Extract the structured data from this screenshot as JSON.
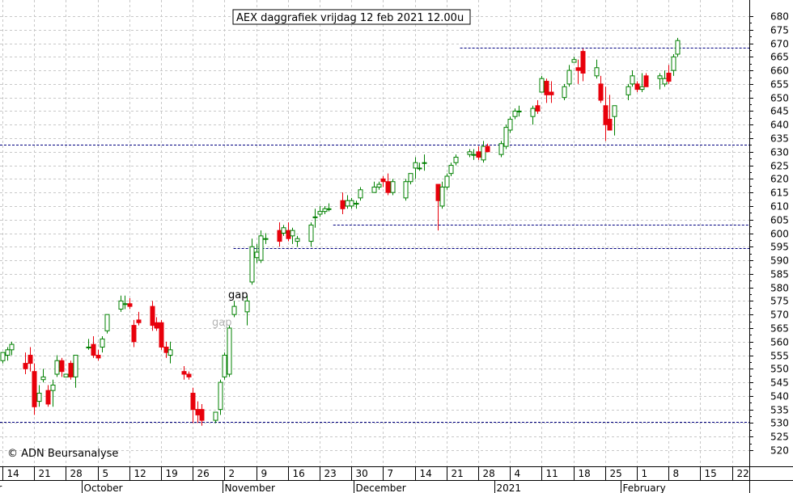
{
  "chart_data": {
    "type": "candlestick",
    "title": "AEX daggrafiek vrijdag 12 feb 2021 12.00u",
    "copyright": "© ADN Beursanalyse",
    "ylim": [
      515,
      685
    ],
    "y_ticks": [
      520,
      525,
      530,
      535,
      540,
      545,
      550,
      555,
      560,
      565,
      570,
      575,
      580,
      585,
      590,
      595,
      600,
      605,
      610,
      615,
      620,
      625,
      630,
      635,
      640,
      645,
      650,
      655,
      660,
      665,
      670,
      675,
      680
    ],
    "x_day_ticks": [
      "14",
      "21",
      "28",
      "5",
      "12",
      "19",
      "26",
      "2",
      "9",
      "16",
      "23",
      "30",
      "7",
      "14",
      "21",
      "28",
      "4",
      "11",
      "18",
      "25",
      "1",
      "8",
      "15",
      "22"
    ],
    "x_month_labels": [
      "er",
      "October",
      "November",
      "December",
      "2021",
      "February"
    ],
    "colors": {
      "up": "#008000",
      "down": "#e8000b",
      "dotted_line": "#000080",
      "grid": "#c8c8c8"
    },
    "annotations": [
      {
        "text": "gap",
        "color": "#000000"
      },
      {
        "text": "gap",
        "color": "#b4b4b4"
      }
    ],
    "support_resistance_lines": [
      {
        "level": 530.5,
        "start_day": 0
      },
      {
        "level": 632.5,
        "start_day": 0
      },
      {
        "level": 594.5,
        "start_day": 51
      },
      {
        "level": 603.0,
        "start_day": 73
      },
      {
        "level": 668.5,
        "start_day": 101
      }
    ],
    "candles": [
      {
        "day": 0,
        "o": 553,
        "h": 556,
        "l": 552,
        "c": 556
      },
      {
        "day": 1,
        "o": 555,
        "h": 558,
        "l": 553,
        "c": 557
      },
      {
        "day": 2,
        "o": 557,
        "h": 560,
        "l": 555,
        "c": 559
      },
      {
        "day": 5,
        "o": 552,
        "h": 556,
        "l": 548,
        "c": 550
      },
      {
        "day": 6,
        "o": 555,
        "h": 558,
        "l": 549,
        "c": 552
      },
      {
        "day": 7,
        "o": 549,
        "h": 552,
        "l": 533,
        "c": 536
      },
      {
        "day": 8,
        "o": 538,
        "h": 544,
        "l": 536,
        "c": 541
      },
      {
        "day": 9,
        "o": 546,
        "h": 550,
        "l": 545,
        "c": 547
      },
      {
        "day": 10,
        "o": 542,
        "h": 544,
        "l": 536,
        "c": 537
      },
      {
        "day": 11,
        "o": 542,
        "h": 546,
        "l": 536,
        "c": 544
      },
      {
        "day": 12,
        "o": 548,
        "h": 555,
        "l": 547,
        "c": 553
      },
      {
        "day": 13,
        "o": 553,
        "h": 554,
        "l": 547,
        "c": 549
      },
      {
        "day": 14,
        "o": 547,
        "h": 548,
        "l": 547,
        "c": 548
      },
      {
        "day": 15,
        "o": 552,
        "h": 553,
        "l": 546,
        "c": 547
      },
      {
        "day": 16,
        "o": 547,
        "h": 555,
        "l": 543,
        "c": 555
      },
      {
        "day": 19,
        "o": 558,
        "h": 561,
        "l": 557,
        "c": 558
      },
      {
        "day": 20,
        "o": 559,
        "h": 562,
        "l": 554,
        "c": 555
      },
      {
        "day": 21,
        "o": 555,
        "h": 557,
        "l": 553,
        "c": 554
      },
      {
        "day": 22,
        "o": 558,
        "h": 562,
        "l": 556,
        "c": 561
      },
      {
        "day": 23,
        "o": 564,
        "h": 570,
        "l": 563,
        "c": 570
      },
      {
        "day": 26,
        "o": 572,
        "h": 577,
        "l": 571,
        "c": 575
      },
      {
        "day": 27,
        "o": 574,
        "h": 577,
        "l": 572,
        "c": 574
      },
      {
        "day": 28,
        "o": 574,
        "h": 576,
        "l": 572,
        "c": 573
      },
      {
        "day": 29,
        "o": 566,
        "h": 568,
        "l": 558,
        "c": 560
      },
      {
        "day": 30,
        "o": 568,
        "h": 571,
        "l": 566,
        "c": 567
      },
      {
        "day": 33,
        "o": 573,
        "h": 575,
        "l": 564,
        "c": 566
      },
      {
        "day": 34,
        "o": 567,
        "h": 569,
        "l": 564,
        "c": 565
      },
      {
        "day": 35,
        "o": 567,
        "h": 568,
        "l": 557,
        "c": 558
      },
      {
        "day": 36,
        "o": 558,
        "h": 560,
        "l": 554,
        "c": 556
      },
      {
        "day": 37,
        "o": 555,
        "h": 560,
        "l": 552,
        "c": 557
      },
      {
        "day": 40,
        "o": 549,
        "h": 551,
        "l": 546,
        "c": 548
      },
      {
        "day": 41,
        "o": 548,
        "h": 549,
        "l": 546,
        "c": 547
      },
      {
        "day": 42,
        "o": 541,
        "h": 543,
        "l": 530,
        "c": 535
      },
      {
        "day": 43,
        "o": 535,
        "h": 538,
        "l": 530,
        "c": 533
      },
      {
        "day": 44,
        "o": 535,
        "h": 537,
        "l": 529,
        "c": 531
      },
      {
        "day": 47,
        "o": 531,
        "h": 534,
        "l": 530,
        "c": 534
      },
      {
        "day": 48,
        "o": 535,
        "h": 546,
        "l": 533,
        "c": 545
      },
      {
        "day": 49,
        "o": 547,
        "h": 556,
        "l": 546,
        "c": 555
      },
      {
        "day": 50,
        "o": 548,
        "h": 566,
        "l": 547,
        "c": 565
      },
      {
        "day": 51,
        "o": 570,
        "h": 575,
        "l": 569,
        "c": 573
      },
      {
        "day": 54,
        "o": 571,
        "h": 577,
        "l": 566,
        "c": 575
      },
      {
        "day": 55,
        "o": 582,
        "h": 598,
        "l": 581,
        "c": 595
      },
      {
        "day": 56,
        "o": 591,
        "h": 596,
        "l": 589,
        "c": 593
      },
      {
        "day": 57,
        "o": 590,
        "h": 601,
        "l": 589,
        "c": 599
      },
      {
        "day": 58,
        "o": 598,
        "h": 600,
        "l": 596,
        "c": 598
      },
      {
        "day": 61,
        "o": 601,
        "h": 604,
        "l": 595,
        "c": 597
      },
      {
        "day": 62,
        "o": 600,
        "h": 603,
        "l": 599,
        "c": 602
      },
      {
        "day": 63,
        "o": 601,
        "h": 604,
        "l": 597,
        "c": 598
      },
      {
        "day": 64,
        "o": 599,
        "h": 602,
        "l": 596,
        "c": 601
      },
      {
        "day": 65,
        "o": 597,
        "h": 599,
        "l": 595,
        "c": 598
      },
      {
        "day": 68,
        "o": 597,
        "h": 604,
        "l": 595,
        "c": 603
      },
      {
        "day": 69,
        "o": 606,
        "h": 609,
        "l": 602,
        "c": 606
      },
      {
        "day": 70,
        "o": 607,
        "h": 610,
        "l": 606,
        "c": 608
      },
      {
        "day": 71,
        "o": 608,
        "h": 610,
        "l": 607,
        "c": 609
      },
      {
        "day": 72,
        "o": 609,
        "h": 611,
        "l": 608,
        "c": 609
      },
      {
        "day": 75,
        "o": 612,
        "h": 615,
        "l": 607,
        "c": 609
      },
      {
        "day": 76,
        "o": 610,
        "h": 614,
        "l": 609,
        "c": 612
      },
      {
        "day": 77,
        "o": 610,
        "h": 613,
        "l": 609,
        "c": 612
      },
      {
        "day": 78,
        "o": 611,
        "h": 612,
        "l": 609,
        "c": 611
      },
      {
        "day": 79,
        "o": 613,
        "h": 617,
        "l": 612,
        "c": 616
      },
      {
        "day": 82,
        "o": 615,
        "h": 619,
        "l": 615,
        "c": 617
      },
      {
        "day": 83,
        "o": 617,
        "h": 619,
        "l": 616,
        "c": 618
      },
      {
        "day": 84,
        "o": 620,
        "h": 621,
        "l": 617,
        "c": 619
      },
      {
        "day": 85,
        "o": 619,
        "h": 622,
        "l": 614,
        "c": 615
      },
      {
        "day": 86,
        "o": 615,
        "h": 620,
        "l": 614,
        "c": 619
      },
      {
        "day": 89,
        "o": 613,
        "h": 620,
        "l": 612,
        "c": 619
      },
      {
        "day": 90,
        "o": 619,
        "h": 622,
        "l": 618,
        "c": 622
      },
      {
        "day": 91,
        "o": 624,
        "h": 628,
        "l": 620,
        "c": 626
      },
      {
        "day": 92,
        "o": 624,
        "h": 626,
        "l": 623,
        "c": 624
      },
      {
        "day": 93,
        "o": 626,
        "h": 629,
        "l": 623,
        "c": 626
      },
      {
        "day": 96,
        "o": 618,
        "h": 618,
        "l": 601,
        "c": 612
      },
      {
        "day": 97,
        "o": 610,
        "h": 619,
        "l": 609,
        "c": 617
      },
      {
        "day": 98,
        "o": 617,
        "h": 622,
        "l": 616,
        "c": 621
      },
      {
        "day": 99,
        "o": 622,
        "h": 626,
        "l": 621,
        "c": 625
      },
      {
        "day": 100,
        "o": 626,
        "h": 629,
        "l": 625,
        "c": 628
      },
      {
        "day": 103,
        "o": 629,
        "h": 631,
        "l": 628,
        "c": 630
      },
      {
        "day": 104,
        "o": 629,
        "h": 631,
        "l": 627,
        "c": 629
      },
      {
        "day": 105,
        "o": 630,
        "h": 632,
        "l": 627,
        "c": 628
      },
      {
        "day": 106,
        "o": 627,
        "h": 634,
        "l": 626,
        "c": 632
      },
      {
        "day": 107,
        "o": 632,
        "h": 633,
        "l": 630,
        "c": 630
      },
      {
        "day": 110,
        "o": 629,
        "h": 634,
        "l": 628,
        "c": 633
      },
      {
        "day": 111,
        "o": 632,
        "h": 640,
        "l": 631,
        "c": 639
      },
      {
        "day": 112,
        "o": 638,
        "h": 643,
        "l": 637,
        "c": 642
      },
      {
        "day": 113,
        "o": 643,
        "h": 646,
        "l": 642,
        "c": 645
      },
      {
        "day": 114,
        "o": 645,
        "h": 647,
        "l": 643,
        "c": 645
      },
      {
        "day": 117,
        "o": 643,
        "h": 647,
        "l": 640,
        "c": 646
      },
      {
        "day": 118,
        "o": 647,
        "h": 649,
        "l": 644,
        "c": 645
      },
      {
        "day": 119,
        "o": 652,
        "h": 658,
        "l": 652,
        "c": 657
      },
      {
        "day": 120,
        "o": 656,
        "h": 657,
        "l": 648,
        "c": 651
      },
      {
        "day": 121,
        "o": 652,
        "h": 656,
        "l": 648,
        "c": 651
      },
      {
        "day": 124,
        "o": 650,
        "h": 655,
        "l": 649,
        "c": 654
      },
      {
        "day": 125,
        "o": 655,
        "h": 662,
        "l": 654,
        "c": 660
      },
      {
        "day": 126,
        "o": 663,
        "h": 665,
        "l": 663,
        "c": 664
      },
      {
        "day": 127,
        "o": 661,
        "h": 664,
        "l": 655,
        "c": 660
      },
      {
        "day": 128,
        "o": 667,
        "h": 668,
        "l": 656,
        "c": 659
      },
      {
        "day": 131,
        "o": 658,
        "h": 664,
        "l": 657,
        "c": 661
      },
      {
        "day": 132,
        "o": 655,
        "h": 658,
        "l": 648,
        "c": 649
      },
      {
        "day": 133,
        "o": 647,
        "h": 654,
        "l": 634,
        "c": 640
      },
      {
        "day": 134,
        "o": 642,
        "h": 651,
        "l": 638,
        "c": 638
      },
      {
        "day": 135,
        "o": 643,
        "h": 647,
        "l": 636,
        "c": 647
      },
      {
        "day": 138,
        "o": 651,
        "h": 655,
        "l": 649,
        "c": 654
      },
      {
        "day": 139,
        "o": 655,
        "h": 660,
        "l": 654,
        "c": 658
      },
      {
        "day": 140,
        "o": 655,
        "h": 656,
        "l": 652,
        "c": 653
      },
      {
        "day": 141,
        "o": 653,
        "h": 659,
        "l": 652,
        "c": 654
      },
      {
        "day": 142,
        "o": 658,
        "h": 659,
        "l": 654,
        "c": 654
      },
      {
        "day": 145,
        "o": 657,
        "h": 659,
        "l": 653,
        "c": 658
      },
      {
        "day": 146,
        "o": 655,
        "h": 660,
        "l": 654,
        "c": 657
      },
      {
        "day": 147,
        "o": 659,
        "h": 662,
        "l": 655,
        "c": 656
      },
      {
        "day": 148,
        "o": 660,
        "h": 666,
        "l": 658,
        "c": 665
      },
      {
        "day": 149,
        "o": 666,
        "h": 672,
        "l": 665,
        "c": 671
      }
    ]
  }
}
